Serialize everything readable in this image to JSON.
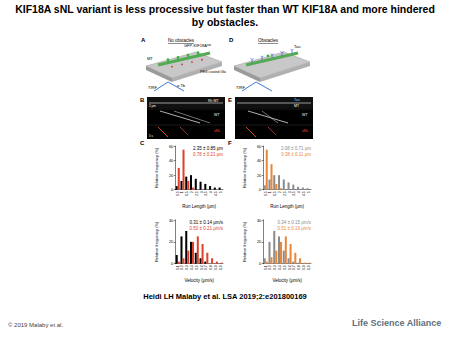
{
  "title": "KIF18A sNL variant is less processive but faster than WT KIF18A and more hindered by obstacles.",
  "caption": "Heidi LH Malaby et al. LSA 2019;2:e201800169",
  "copyright": "© 2019 Malaby et al.",
  "publisher": "Life Science Alliance",
  "panels": {
    "A": {
      "letter": "A",
      "heading": "No obstacles",
      "mt": "MT",
      "motor": "GFP-KIF18A",
      "motor_sup": "var",
      "surface": "PEG coated Glass",
      "antibody": "α Tb",
      "imaging": "TIRF"
    },
    "D": {
      "letter": "D",
      "heading": "Obstacles",
      "obstacle": "Tau",
      "imaging": "TIRF"
    },
    "B": {
      "letter": "B",
      "mt": "Rh MT",
      "wt": "WT",
      "snl": "sNL",
      "scale_x": "2 μm",
      "scale_t": "5 s"
    },
    "E": {
      "letter": "E",
      "obstacle": "Tau",
      "mt": "MT",
      "wt": "WT",
      "snl": "sNL"
    },
    "C": {
      "letter": "C"
    },
    "F": {
      "letter": "F"
    }
  },
  "chart_data": [
    {
      "type": "bar",
      "categories": [
        "0.5",
        "1",
        "1.5",
        "2",
        "2.5",
        "3",
        "3.5",
        "4",
        "4.5",
        "5"
      ],
      "series": [
        {
          "color": "#000000",
          "values": [
            5,
            12,
            18,
            20,
            15,
            11,
            8,
            5,
            3,
            3
          ]
        },
        {
          "color": "#e0402a",
          "values": [
            30,
            55,
            12,
            3,
            0,
            0,
            0,
            0,
            0,
            0
          ]
        }
      ],
      "ylim": [
        0,
        60
      ],
      "yticks": [
        0,
        20,
        40,
        60
      ],
      "grid": false,
      "xlabel": "Run Length (μm)",
      "ylabel": "Relative frequency (%)",
      "annotations": [
        "2.35 ± 0.85 μm",
        "0.78 ± 0.21 μm"
      ]
    },
    {
      "type": "bar",
      "categories": [
        "0.1",
        "0.2",
        "0.3",
        "0.4",
        "0.5",
        "0.6",
        "0.7",
        "0.8",
        "0.9",
        "1.0"
      ],
      "series": [
        {
          "color": "#000000",
          "values": [
            8,
            25,
            30,
            20,
            10,
            5,
            2,
            0,
            0,
            0
          ]
        },
        {
          "color": "#e0402a",
          "values": [
            2,
            5,
            12,
            20,
            25,
            18,
            10,
            5,
            2,
            1
          ]
        }
      ],
      "ylim": [
        0,
        40
      ],
      "yticks": [
        0,
        20,
        40
      ],
      "grid": false,
      "xlabel": "Velocity (μm/s)",
      "ylabel": "Relative frequency (%)",
      "annotations": [
        "0.31 ± 0.14 μm/s",
        "0.50 ± 0.21 μm/s"
      ]
    },
    {
      "type": "bar",
      "categories": [
        "0.5",
        "1",
        "1.5",
        "2",
        "2.5",
        "3",
        "3.5",
        "4",
        "4.5",
        "5"
      ],
      "series": [
        {
          "color": "#8c8c8c",
          "values": [
            6,
            14,
            20,
            20,
            14,
            10,
            7,
            4,
            3,
            2
          ]
        },
        {
          "color": "#e8863a",
          "values": [
            55,
            35,
            8,
            2,
            0,
            0,
            0,
            0,
            0,
            0
          ]
        }
      ],
      "ylim": [
        0,
        60
      ],
      "yticks": [
        0,
        20,
        40,
        60
      ],
      "grid": false,
      "xlabel": "Run Length (μm)",
      "ylabel": "Relative frequency (%)",
      "annotations": [
        "2.08 ± 0.71 μm",
        "0.38 ± 0.11 μm"
      ]
    },
    {
      "type": "bar",
      "categories": [
        "0.1",
        "0.2",
        "0.3",
        "0.4",
        "0.5",
        "0.6",
        "0.7",
        "0.8",
        "0.9",
        "1.0"
      ],
      "series": [
        {
          "color": "#8c8c8c",
          "values": [
            5,
            20,
            30,
            25,
            12,
            5,
            2,
            1,
            0,
            0
          ]
        },
        {
          "color": "#e8863a",
          "values": [
            2,
            6,
            12,
            20,
            25,
            18,
            10,
            5,
            1,
            1
          ]
        }
      ],
      "ylim": [
        0,
        40
      ],
      "yticks": [
        0,
        20,
        40
      ],
      "grid": false,
      "xlabel": "Velocity (μm/s)",
      "ylabel": "Relative frequency (%)",
      "annotations": [
        "0.34 ± 0.15 μm/s",
        "0.51 ± 0.19 μm/s"
      ]
    }
  ]
}
